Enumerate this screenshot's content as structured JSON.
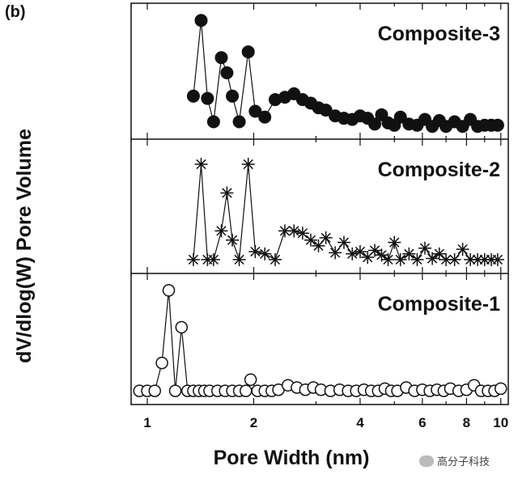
{
  "panel_tag": "(b)",
  "watermark": "高分子科技",
  "chart_data": {
    "type": "line",
    "ylabel": "dV/dlog(W) Pore Volume",
    "xlabel": "Pore Width (nm)",
    "x_scale": "log",
    "xlim": [
      0.9,
      10.5
    ],
    "x_ticks": [
      1,
      2,
      4,
      6,
      8,
      10
    ],
    "x_tick_labels": [
      "1",
      "2",
      "4",
      "6",
      "8",
      "10"
    ],
    "ylim": [
      0,
      1
    ],
    "panels": [
      {
        "title": "Composite-3",
        "marker": "filled-circle",
        "x": [
          1.35,
          1.42,
          1.48,
          1.54,
          1.62,
          1.68,
          1.74,
          1.82,
          1.93,
          2.02,
          2.15,
          2.3,
          2.45,
          2.6,
          2.75,
          2.9,
          3.05,
          3.2,
          3.4,
          3.6,
          3.8,
          4.0,
          4.2,
          4.4,
          4.6,
          4.8,
          5.0,
          5.2,
          5.5,
          5.8,
          6.1,
          6.4,
          6.7,
          7.0,
          7.4,
          7.8,
          8.2,
          8.6,
          9.0,
          9.4,
          9.8
        ],
        "y": [
          0.3,
          0.95,
          0.28,
          0.08,
          0.63,
          0.5,
          0.3,
          0.08,
          0.68,
          0.17,
          0.12,
          0.27,
          0.29,
          0.32,
          0.27,
          0.24,
          0.2,
          0.18,
          0.13,
          0.11,
          0.1,
          0.13,
          0.11,
          0.06,
          0.14,
          0.07,
          0.05,
          0.12,
          0.06,
          0.05,
          0.1,
          0.04,
          0.09,
          0.04,
          0.08,
          0.04,
          0.1,
          0.04,
          0.05,
          0.05,
          0.05
        ]
      },
      {
        "title": "Composite-2",
        "marker": "asterisk",
        "x": [
          1.35,
          1.42,
          1.48,
          1.54,
          1.62,
          1.68,
          1.74,
          1.82,
          1.93,
          2.02,
          2.15,
          2.3,
          2.45,
          2.6,
          2.75,
          2.9,
          3.05,
          3.2,
          3.4,
          3.6,
          3.8,
          4.0,
          4.2,
          4.4,
          4.6,
          4.8,
          5.0,
          5.2,
          5.5,
          5.8,
          6.1,
          6.4,
          6.7,
          7.0,
          7.4,
          7.8,
          8.2,
          8.6,
          9.0,
          9.4,
          9.8
        ],
        "y": [
          0.05,
          0.88,
          0.05,
          0.05,
          0.3,
          0.63,
          0.22,
          0.05,
          0.88,
          0.12,
          0.1,
          0.05,
          0.3,
          0.3,
          0.28,
          0.22,
          0.17,
          0.24,
          0.11,
          0.2,
          0.1,
          0.12,
          0.07,
          0.13,
          0.09,
          0.05,
          0.2,
          0.05,
          0.1,
          0.05,
          0.15,
          0.06,
          0.1,
          0.05,
          0.05,
          0.14,
          0.05,
          0.05,
          0.05,
          0.05,
          0.05
        ]
      },
      {
        "title": "Composite-1",
        "marker": "open-circle",
        "x": [
          0.95,
          1.0,
          1.05,
          1.1,
          1.15,
          1.2,
          1.25,
          1.3,
          1.35,
          1.4,
          1.45,
          1.5,
          1.58,
          1.66,
          1.74,
          1.82,
          1.9,
          1.96,
          2.05,
          2.15,
          2.25,
          2.35,
          2.5,
          2.65,
          2.8,
          2.95,
          3.1,
          3.3,
          3.5,
          3.7,
          3.9,
          4.1,
          4.3,
          4.5,
          4.7,
          4.9,
          5.1,
          5.4,
          5.7,
          6.0,
          6.3,
          6.6,
          6.9,
          7.2,
          7.6,
          8.0,
          8.4,
          8.8,
          9.2,
          9.6,
          10.0
        ],
        "y": [
          0.05,
          0.05,
          0.05,
          0.3,
          0.95,
          0.05,
          0.62,
          0.05,
          0.05,
          0.05,
          0.05,
          0.05,
          0.05,
          0.05,
          0.05,
          0.05,
          0.05,
          0.15,
          0.05,
          0.05,
          0.05,
          0.06,
          0.1,
          0.08,
          0.06,
          0.08,
          0.06,
          0.05,
          0.06,
          0.05,
          0.05,
          0.06,
          0.05,
          0.05,
          0.07,
          0.05,
          0.05,
          0.08,
          0.05,
          0.06,
          0.05,
          0.06,
          0.05,
          0.07,
          0.05,
          0.06,
          0.1,
          0.05,
          0.05,
          0.05,
          0.07
        ]
      }
    ]
  }
}
